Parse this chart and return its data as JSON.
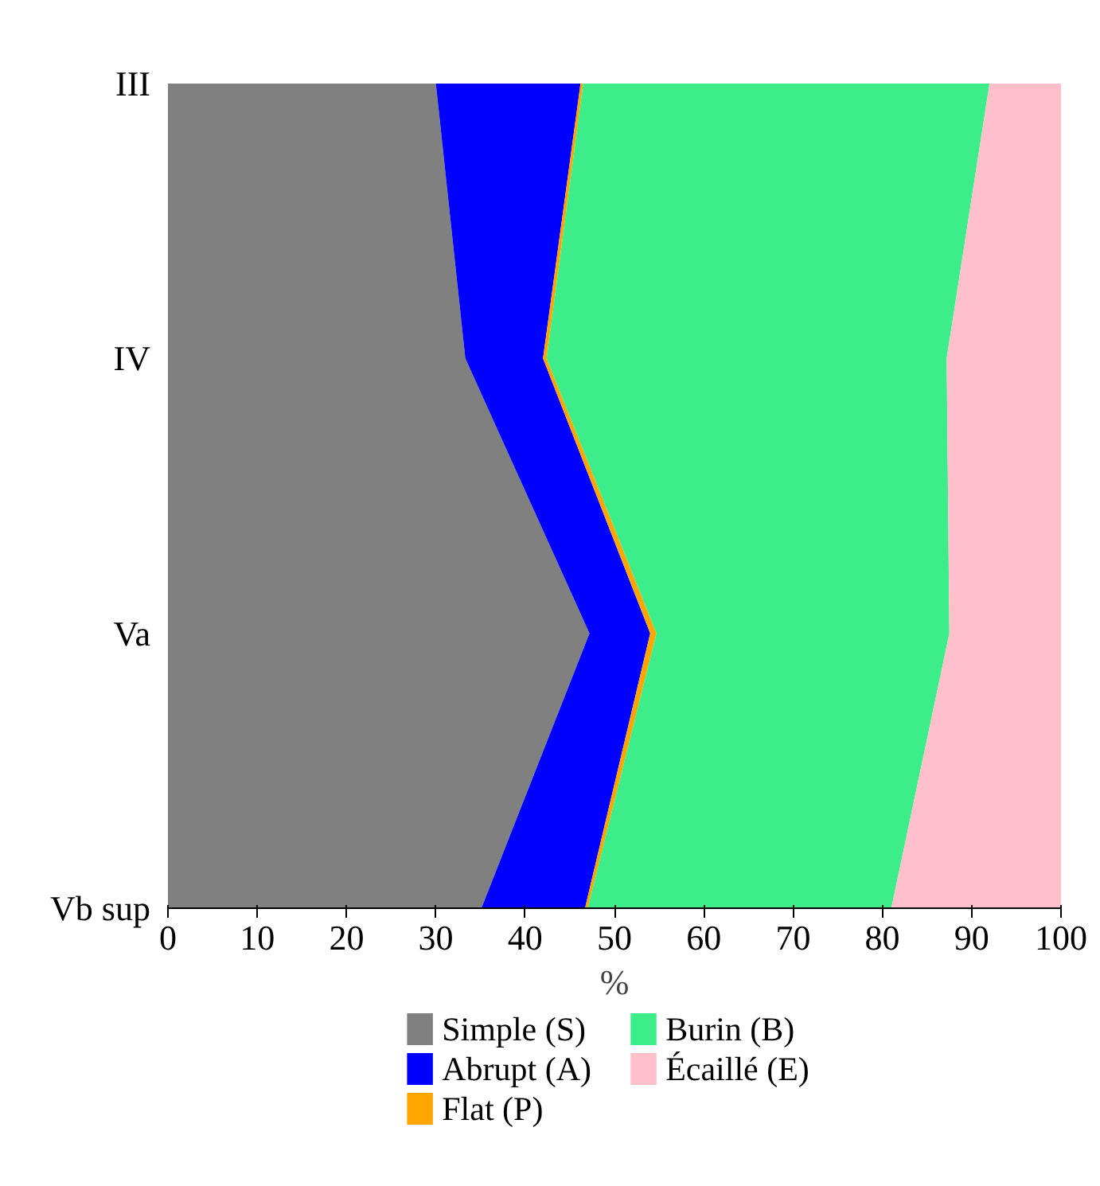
{
  "chart_data": {
    "type": "area",
    "orientation": "horizontal",
    "stacked": true,
    "categories": [
      "III",
      "IV",
      "Va",
      "Vb sup"
    ],
    "xlabel": "%",
    "xlim": [
      0,
      100
    ],
    "xticks": [
      0,
      10,
      20,
      30,
      40,
      50,
      60,
      70,
      80,
      90,
      100
    ],
    "grid": false,
    "legend": "bottom",
    "series": [
      {
        "name": "Simple (S)",
        "color": "#808080",
        "values": [
          30,
          33.3,
          47.2,
          35.1
        ]
      },
      {
        "name": "Abrupt (A)",
        "color": "#0000ff",
        "values": [
          16.2,
          8.7,
          6.8,
          11.6
        ]
      },
      {
        "name": "Flat (P)",
        "color": "#ffa500",
        "values": [
          0.3,
          0.4,
          0.7,
          0.3
        ]
      },
      {
        "name": "Burin (B)",
        "color": "#3ced8a",
        "values": [
          45.5,
          44.8,
          32.8,
          34
        ]
      },
      {
        "name": "Écaillé (E)",
        "color": "#ffc0cb",
        "values": [
          8,
          12.8,
          12.5,
          19
        ]
      }
    ]
  }
}
